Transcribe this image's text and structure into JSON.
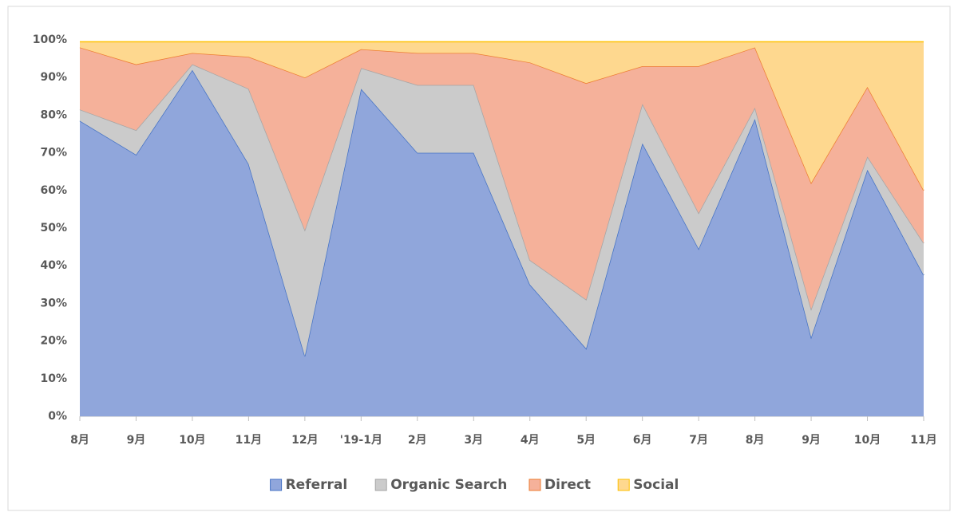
{
  "chart_data": {
    "type": "stacked_area_percent",
    "categories": [
      "8月",
      "9月",
      "10月",
      "11月",
      "12月",
      "'19-1月",
      "2月",
      "3月",
      "4月",
      "5月",
      "6月",
      "7月",
      "8月",
      "9月",
      "10月",
      "11月"
    ],
    "series": [
      {
        "name": "Referral",
        "color": "#90a6db",
        "line_color": "#4472c4",
        "values": [
          78.5,
          69.5,
          92,
          67,
          16,
          87,
          70,
          70,
          35,
          18,
          72.5,
          44.5,
          79,
          21,
          65.5,
          37.5
        ]
      },
      {
        "name": "Organic Search",
        "color": "#cbcbcb",
        "line_color": "#a5a5a5",
        "values": [
          3,
          6.5,
          1.5,
          20,
          33.5,
          5.5,
          18,
          18,
          6.5,
          13,
          10.5,
          9.5,
          3,
          7.5,
          3.5,
          8.5
        ]
      },
      {
        "name": "Direct",
        "color": "#f5b19a",
        "line_color": "#ed7d31",
        "values": [
          16.5,
          17.5,
          3,
          8.5,
          40.5,
          5,
          8.5,
          8.5,
          52.5,
          57.5,
          10,
          39,
          16,
          33.5,
          18.5,
          14
        ]
      },
      {
        "name": "Social",
        "color": "#fed88f",
        "line_color": "#ffc000",
        "values": [
          1.5,
          6,
          3,
          4,
          9.5,
          2,
          3,
          3,
          5.5,
          11,
          6.5,
          6.5,
          1.5,
          37.5,
          12,
          39.5
        ]
      }
    ],
    "ylim": [
      0,
      100
    ],
    "yticks": [
      {
        "value": 0,
        "label": "0%"
      },
      {
        "value": 10,
        "label": "10%"
      },
      {
        "value": 20,
        "label": "20%"
      },
      {
        "value": 30,
        "label": "30%"
      },
      {
        "value": 40,
        "label": "40%"
      },
      {
        "value": 50,
        "label": "50%"
      },
      {
        "value": 60,
        "label": "60%"
      },
      {
        "value": 70,
        "label": "70%"
      },
      {
        "value": 80,
        "label": "80%"
      },
      {
        "value": 90,
        "label": "90%"
      },
      {
        "value": 100,
        "label": "100%"
      }
    ],
    "grid": false,
    "legend": "bottom"
  }
}
